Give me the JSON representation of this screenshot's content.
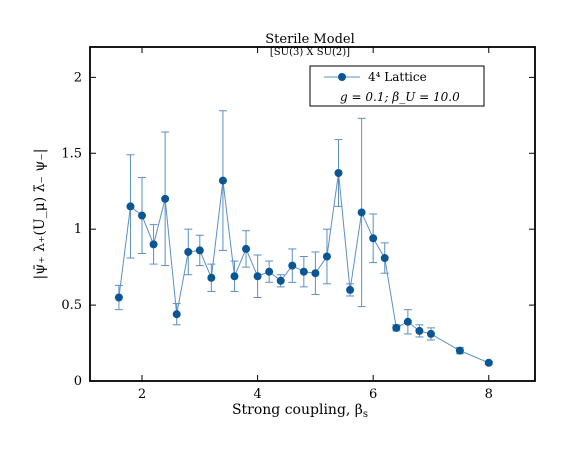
{
  "chart_data": {
    "type": "scatter",
    "title": "Sterile Model",
    "subtitle": "[SU(3) X SU(2)]",
    "xlabel": "Strong coupling, β",
    "xlabel_sub": "s",
    "ylabel": "|ψ̄₊ λ₊(U_μ) λ̄₋ ψ₋|",
    "xlim": [
      1.1,
      8.8
    ],
    "ylim": [
      0,
      2.2
    ],
    "xticks": [
      2,
      4,
      6,
      8
    ],
    "yticks": [
      0,
      0.5,
      1,
      1.5,
      2
    ],
    "xtick_labels": [
      "2",
      "4",
      "6",
      "8"
    ],
    "ytick_labels": [
      "0",
      "0.5",
      "1",
      "1.5",
      "2"
    ],
    "grid": false,
    "legend_position": "top-right",
    "colors": {
      "series": "#0a5694",
      "line": "#5b8fc4"
    },
    "series": [
      {
        "name": "4⁴ Lattice",
        "x": [
          1.6,
          1.8,
          2.0,
          2.2,
          2.4,
          2.6,
          2.8,
          3.0,
          3.2,
          3.4,
          3.6,
          3.8,
          4.0,
          4.2,
          4.4,
          4.6,
          4.8,
          5.0,
          5.2,
          5.4,
          5.6,
          5.8,
          6.0,
          6.2,
          6.4,
          6.6,
          6.8,
          7.0,
          7.5,
          8.0
        ],
        "y": [
          0.55,
          1.15,
          1.09,
          0.9,
          1.2,
          0.44,
          0.85,
          0.86,
          0.68,
          1.32,
          0.69,
          0.87,
          0.69,
          0.72,
          0.66,
          0.76,
          0.72,
          0.71,
          0.82,
          1.37,
          0.6,
          1.11,
          0.94,
          0.81,
          0.35,
          0.39,
          0.33,
          0.31,
          0.2,
          0.12
        ],
        "err": [
          0.08,
          0.34,
          0.25,
          0.13,
          0.44,
          0.07,
          0.15,
          0.1,
          0.09,
          0.46,
          0.1,
          0.12,
          0.14,
          0.07,
          0.04,
          0.11,
          0.1,
          0.14,
          0.18,
          0.22,
          0.04,
          0.62,
          0.16,
          0.1,
          0.02,
          0.08,
          0.04,
          0.04,
          0.02,
          0.01
        ]
      }
    ],
    "annotation": "g = 0.1;  β_U = 10.0"
  }
}
